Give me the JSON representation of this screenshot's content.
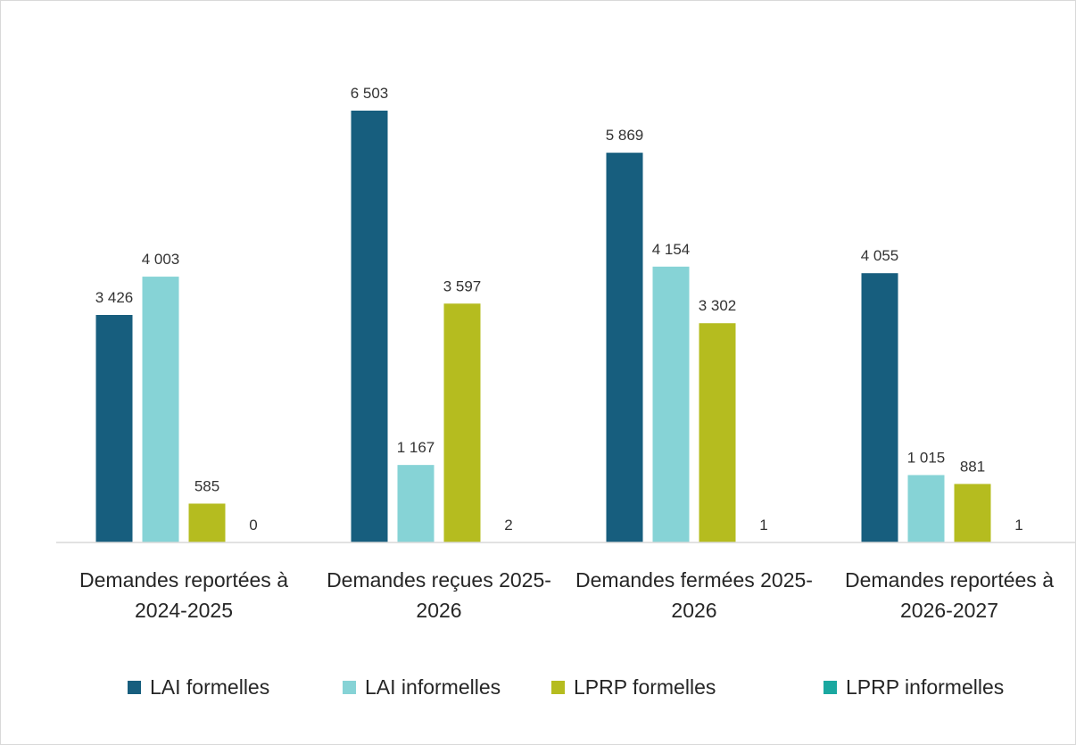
{
  "chart_data": {
    "type": "bar",
    "categories": [
      "Demandes reportées à 2024-2025",
      "Demandes reçues 2025-2026",
      "Demandes fermées 2025-2026",
      "Demandes reportées à 2026-2027"
    ],
    "series": [
      {
        "name": "LAI formelles",
        "color": "#175e7e",
        "values": [
          3426,
          6503,
          5869,
          4055
        ],
        "value_labels": [
          "3 426",
          "6 503",
          "5 869",
          "4 055"
        ]
      },
      {
        "name": "LAI informelles",
        "color": "#86d3d6",
        "values": [
          4003,
          1167,
          4154,
          1015
        ],
        "value_labels": [
          "4 003",
          "1 167",
          "4 154",
          "1 015"
        ]
      },
      {
        "name": "LPRP formelles",
        "color": "#b5bc1f",
        "values": [
          585,
          3597,
          3302,
          881
        ],
        "value_labels": [
          "585",
          "3 597",
          "3 302",
          "881"
        ]
      },
      {
        "name": "LPRP informelles",
        "color": "#1aa8a0",
        "values": [
          0,
          2,
          1,
          1
        ]
      }
    ],
    "ylim": [
      0,
      7000
    ]
  }
}
